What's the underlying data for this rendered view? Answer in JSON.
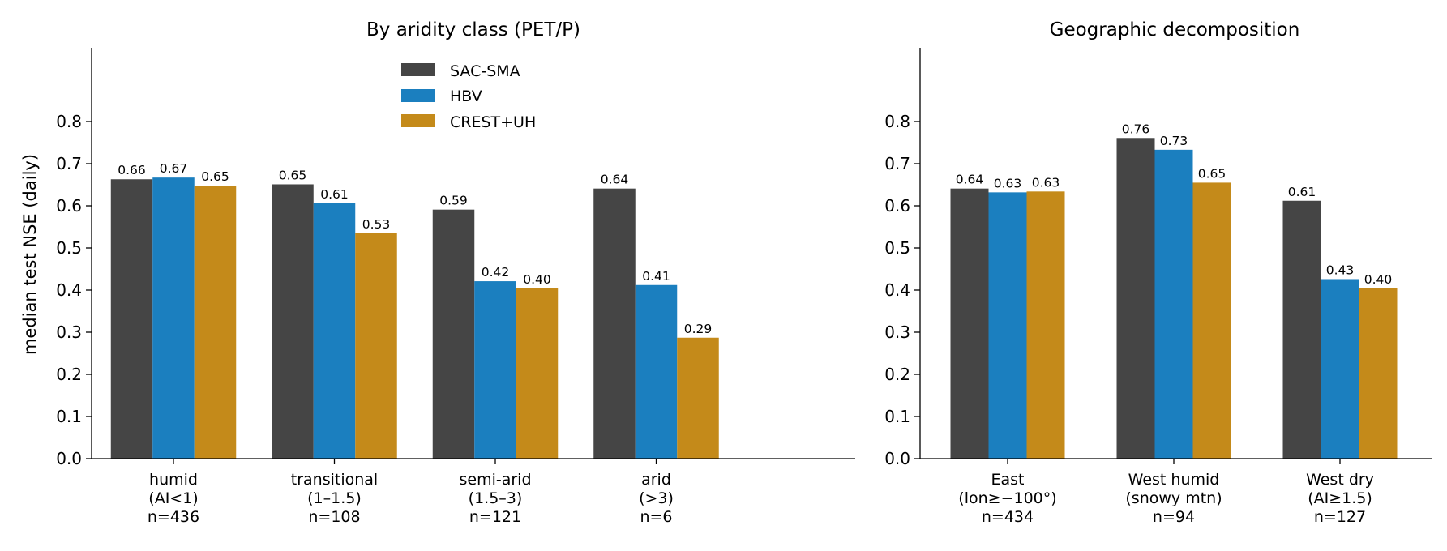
{
  "colors": {
    "SAC-SMA": "#454545",
    "HBV": "#1b7fbf",
    "CREST+UH": "#c48a1a",
    "axis": "#000000"
  },
  "chart_data": [
    {
      "type": "bar",
      "title": "By aridity class (PET/P)",
      "ylabel": "median test NSE (daily)",
      "xlabel": "",
      "ylim": [
        0,
        0.85
      ],
      "yticks": [
        "0.0",
        "0.1",
        "0.2",
        "0.3",
        "0.4",
        "0.5",
        "0.6",
        "0.7",
        "0.8"
      ],
      "grid": false,
      "legend_position": "top-center",
      "categories": [
        [
          "humid",
          "(AI<1)",
          "n=436"
        ],
        [
          "transitional",
          "(1–1.5)",
          "n=108"
        ],
        [
          "semi-arid",
          "(1.5–3)",
          "n=121"
        ],
        [
          "arid",
          "(>3)",
          "n=6"
        ]
      ],
      "series": [
        {
          "name": "SAC-SMA",
          "values": [
            0.663,
            0.651,
            0.591,
            0.641
          ],
          "labels": [
            "0.66",
            "0.65",
            "0.59",
            "0.64"
          ]
        },
        {
          "name": "HBV",
          "values": [
            0.667,
            0.606,
            0.421,
            0.412
          ],
          "labels": [
            "0.67",
            "0.61",
            "0.42",
            "0.41"
          ]
        },
        {
          "name": "CREST+UH",
          "values": [
            0.648,
            0.535,
            0.404,
            0.287
          ],
          "labels": [
            "0.65",
            "0.53",
            "0.40",
            "0.29"
          ]
        }
      ]
    },
    {
      "type": "bar",
      "title": "Geographic decomposition",
      "ylabel": "",
      "xlabel": "",
      "ylim": [
        0,
        0.85
      ],
      "yticks": [
        "0.0",
        "0.1",
        "0.2",
        "0.3",
        "0.4",
        "0.5",
        "0.6",
        "0.7",
        "0.8"
      ],
      "grid": false,
      "categories": [
        [
          "East",
          "(lon≥−100°)",
          "n=434"
        ],
        [
          "West humid",
          "(snowy mtn)",
          "n=94"
        ],
        [
          "West dry",
          "(AI≥1.5)",
          "n=127"
        ]
      ],
      "series": [
        {
          "name": "SAC-SMA",
          "values": [
            0.641,
            0.761,
            0.612
          ],
          "labels": [
            "0.64",
            "0.76",
            "0.61"
          ]
        },
        {
          "name": "HBV",
          "values": [
            0.632,
            0.733,
            0.426
          ],
          "labels": [
            "0.63",
            "0.73",
            "0.43"
          ]
        },
        {
          "name": "CREST+UH",
          "values": [
            0.634,
            0.655,
            0.404
          ],
          "labels": [
            "0.63",
            "0.65",
            "0.40"
          ]
        }
      ]
    }
  ]
}
